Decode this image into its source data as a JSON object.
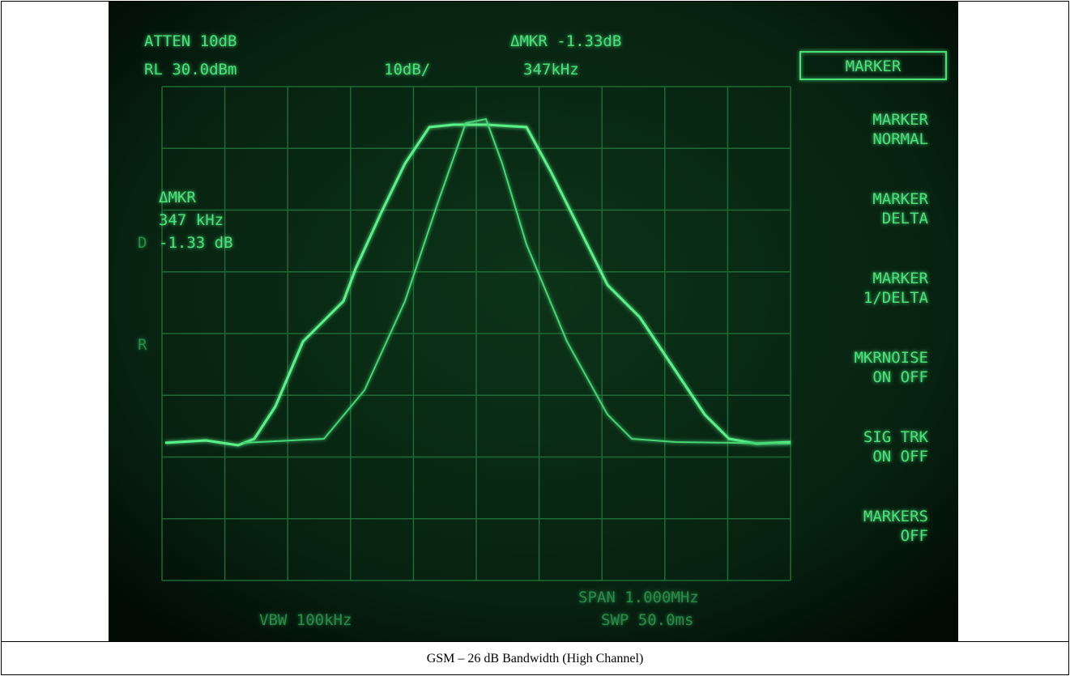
{
  "screen": {
    "header": {
      "atten": "ATTEN 10dB",
      "ref_level": "RL 30.0dBm",
      "scale": "10dB/",
      "delta_marker": "ΔMKR -1.33dB",
      "delta_freq": "347kHz"
    },
    "menu_title": "MARKER",
    "softkeys": [
      [
        "MARKER",
        "NORMAL"
      ],
      [
        "MARKER",
        "DELTA"
      ],
      [
        "MARKER",
        "1/DELTA"
      ],
      [
        "MKRNOISE",
        "ON OFF"
      ],
      [
        "SIG TRK",
        "ON OFF"
      ],
      [
        "MARKERS",
        "OFF"
      ]
    ],
    "marker_readout": [
      "ΔMKR",
      "347 kHz",
      "-1.33 dB"
    ],
    "side_letters": [
      "D",
      "R"
    ],
    "footer": {
      "vbw": "VBW 100kHz",
      "span": "SPAN 1.000MHz",
      "sweep": "SWP 50.0ms"
    }
  },
  "caption": "GSM – 26 dB Bandwidth (High Channel)"
}
